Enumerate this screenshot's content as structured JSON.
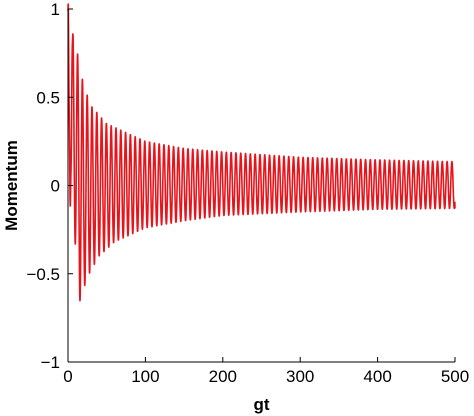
{
  "chart_data": {
    "type": "line",
    "title": "",
    "xlabel": "gt",
    "ylabel": "Momentum",
    "xlim": [
      0,
      500
    ],
    "ylim": [
      -1,
      1
    ],
    "xticks": [
      0,
      100,
      200,
      300,
      400,
      500
    ],
    "xtick_labels": [
      "0",
      "100",
      "200",
      "300",
      "400",
      "500"
    ],
    "yticks": [
      -1,
      -0.5,
      0,
      0.5,
      1
    ],
    "ytick_labels": [
      "−1",
      "−0.5",
      "0",
      "0.5",
      "1"
    ],
    "grid": false,
    "legend": false,
    "series": [
      {
        "color": "#e8141c",
        "style": "damped oscillation",
        "peak_envelope": [
          {
            "x": 0,
            "y": 0.99
          },
          {
            "x": 10,
            "y": 0.8
          },
          {
            "x": 20,
            "y": 0.57
          },
          {
            "x": 30,
            "y": 0.45
          },
          {
            "x": 50,
            "y": 0.35
          },
          {
            "x": 100,
            "y": 0.25
          },
          {
            "x": 150,
            "y": 0.21
          },
          {
            "x": 200,
            "y": 0.19
          },
          {
            "x": 300,
            "y": 0.16
          },
          {
            "x": 400,
            "y": 0.145
          },
          {
            "x": 500,
            "y": 0.135
          }
        ],
        "trough_envelope": [
          {
            "x": 5,
            "y": -0.08
          },
          {
            "x": 15,
            "y": -0.66
          },
          {
            "x": 25,
            "y": -0.52
          },
          {
            "x": 40,
            "y": -0.4
          },
          {
            "x": 60,
            "y": -0.32
          },
          {
            "x": 100,
            "y": -0.24
          },
          {
            "x": 150,
            "y": -0.2
          },
          {
            "x": 200,
            "y": -0.17
          },
          {
            "x": 300,
            "y": -0.15
          },
          {
            "x": 400,
            "y": -0.135
          },
          {
            "x": 500,
            "y": -0.13
          }
        ],
        "period": 6.2,
        "end_value": -0.13
      }
    ]
  }
}
